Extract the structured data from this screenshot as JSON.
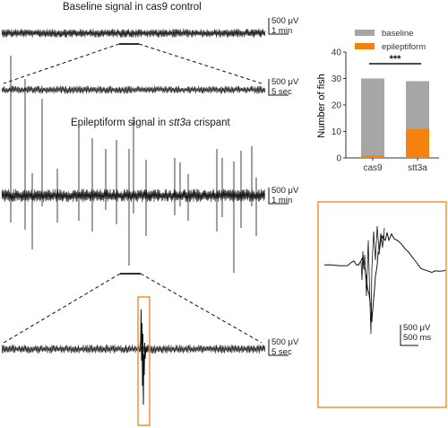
{
  "titles": {
    "baseline": "Baseline signal in cas9 control",
    "epi_prefix": "Epileptiform signal in ",
    "epi_gene": "stt3a",
    "epi_suffix": " crispant"
  },
  "scale_bars": {
    "trace1": {
      "amp": "500 μV",
      "time": "1 min"
    },
    "trace2": {
      "amp": "500 μV",
      "time": "5 sec"
    },
    "trace3": {
      "amp": "500 μV",
      "time": "1 min"
    },
    "trace4": {
      "amp": "500 μV",
      "time": "5 sec"
    },
    "inset": {
      "amp": "500 μV",
      "time": "500 ms"
    }
  },
  "colors": {
    "highlight": "#f08a2b",
    "baseline": "#a6a6a6",
    "epileptiform": "#f5820f",
    "trace": "#111111"
  },
  "chart_data": {
    "type": "bar",
    "stacked": true,
    "categories": [
      "cas9",
      "stt3a"
    ],
    "series": [
      {
        "name": "epileptiform",
        "values": [
          1,
          11
        ]
      },
      {
        "name": "baseline",
        "values": [
          29,
          18
        ]
      }
    ],
    "ylabel": "Number of fish",
    "xlabel": "",
    "ylim": [
      0,
      40
    ],
    "yticks": [
      0,
      10,
      20,
      30,
      40
    ],
    "significance": "***",
    "legend_position": "top-right"
  }
}
